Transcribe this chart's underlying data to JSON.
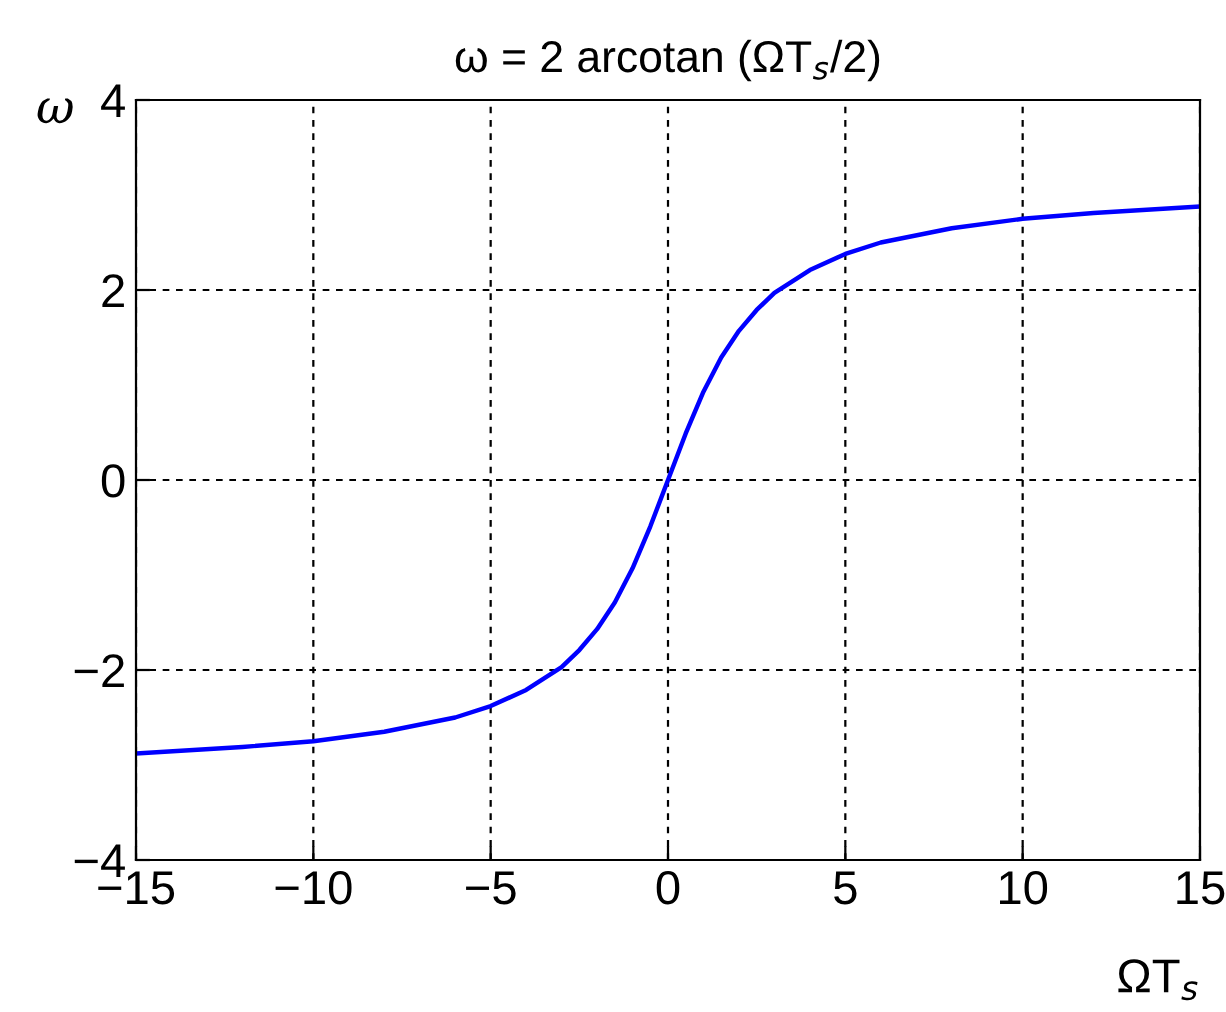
{
  "chart_data": {
    "type": "line",
    "title": "ω = 2 arcotan (ΩT$_{s}$/2)",
    "xlabel": "ΩT$_{s}$",
    "ylabel": "ω",
    "series": [
      {
        "color": "#0000ff",
        "x": [
          -15,
          -12,
          -10,
          -8,
          -6,
          -5,
          -4,
          -3,
          -2.5,
          -2,
          -1.5,
          -1,
          -0.5,
          0,
          0.5,
          1,
          1.5,
          2,
          2.5,
          3,
          4,
          5,
          6,
          8,
          10,
          12,
          15
        ],
        "values": [
          -2.88,
          -2.81,
          -2.75,
          -2.65,
          -2.5,
          -2.38,
          -2.21,
          -1.97,
          -1.79,
          -1.57,
          -1.29,
          -0.93,
          -0.49,
          0,
          0.49,
          0.93,
          1.29,
          1.57,
          1.79,
          1.97,
          2.21,
          2.38,
          2.5,
          2.65,
          2.75,
          2.81,
          2.88
        ]
      }
    ],
    "xlim": [
      -15,
      15
    ],
    "ylim": [
      -4,
      4
    ],
    "xticks": [
      {
        "value": -15,
        "label": "−15"
      },
      {
        "value": -10,
        "label": "−10"
      },
      {
        "value": -5,
        "label": "−5"
      },
      0,
      5,
      10,
      15
    ],
    "yticks": [
      {
        "value": -4,
        "label": "−4"
      },
      {
        "value": -2,
        "label": "−2"
      },
      0,
      2,
      4
    ],
    "grid": true,
    "line_style": "solid",
    "marker": "none"
  }
}
